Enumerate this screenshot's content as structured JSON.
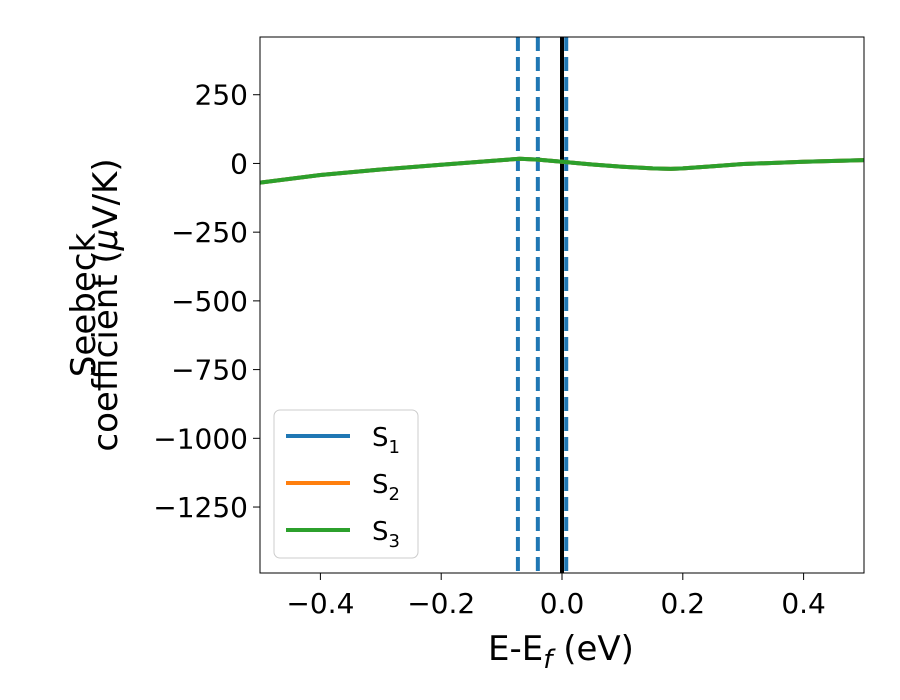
{
  "chart_data": {
    "type": "line",
    "title": "",
    "xlabel": "E-E",
    "xlabel_sub": "f",
    "xlabel_unit": " (eV)",
    "ylabel_line1": "Seebeck",
    "ylabel_line2_pre": "coefficient  (",
    "ylabel_mu": "μ",
    "ylabel_line2_post": "V/K)",
    "xlim": [
      -0.5,
      0.5
    ],
    "ylim": [
      -1490,
      460
    ],
    "xticks": [
      -0.4,
      -0.2,
      0.0,
      0.2,
      0.4
    ],
    "xtick_labels": [
      "−0.4",
      "−0.2",
      "0.0",
      "0.2",
      "0.4"
    ],
    "yticks": [
      250,
      0,
      -250,
      -500,
      -750,
      -1000,
      -1250
    ],
    "ytick_labels": [
      "250",
      "0",
      "−250",
      "−500",
      "−750",
      "−1000",
      "−1250"
    ],
    "grid": false,
    "legend_position": "lower-left",
    "series": [
      {
        "name": "S",
        "sub": "1",
        "color": "#1f77b4",
        "x": [
          -0.5,
          -0.4,
          -0.3,
          -0.2,
          -0.1,
          -0.07,
          -0.04,
          0.0,
          0.05,
          0.1,
          0.15,
          0.18,
          0.2,
          0.25,
          0.3,
          0.4,
          0.5
        ],
        "y": [
          -70,
          -42,
          -22,
          -5,
          12,
          17,
          14,
          6,
          -4,
          -12,
          -18,
          -20,
          -18,
          -10,
          -2,
          6,
          12
        ]
      },
      {
        "name": "S",
        "sub": "2",
        "color": "#ff7f0e",
        "x": [
          -0.5,
          -0.4,
          -0.3,
          -0.2,
          -0.1,
          -0.07,
          -0.04,
          0.0,
          0.05,
          0.1,
          0.15,
          0.18,
          0.2,
          0.25,
          0.3,
          0.4,
          0.5
        ],
        "y": [
          -70,
          -42,
          -22,
          -5,
          12,
          17,
          14,
          6,
          -4,
          -12,
          -18,
          -20,
          -18,
          -10,
          -2,
          6,
          12
        ]
      },
      {
        "name": "S",
        "sub": "3",
        "color": "#2ca02c",
        "x": [
          -0.5,
          -0.4,
          -0.3,
          -0.2,
          -0.1,
          -0.07,
          -0.04,
          0.0,
          0.05,
          0.1,
          0.15,
          0.18,
          0.2,
          0.25,
          0.3,
          0.4,
          0.5
        ],
        "y": [
          -70,
          -42,
          -22,
          -5,
          12,
          17,
          14,
          6,
          -4,
          -12,
          -18,
          -20,
          -18,
          -10,
          -2,
          6,
          12
        ]
      }
    ],
    "vlines": [
      {
        "x": -0.073,
        "color": "#1f77b4",
        "style": "dashed"
      },
      {
        "x": -0.04,
        "color": "#1f77b4",
        "style": "dashed"
      },
      {
        "x": 0.007,
        "color": "#1f77b4",
        "style": "dashed"
      },
      {
        "x": 0.0,
        "color": "#000000",
        "style": "solid"
      }
    ]
  }
}
